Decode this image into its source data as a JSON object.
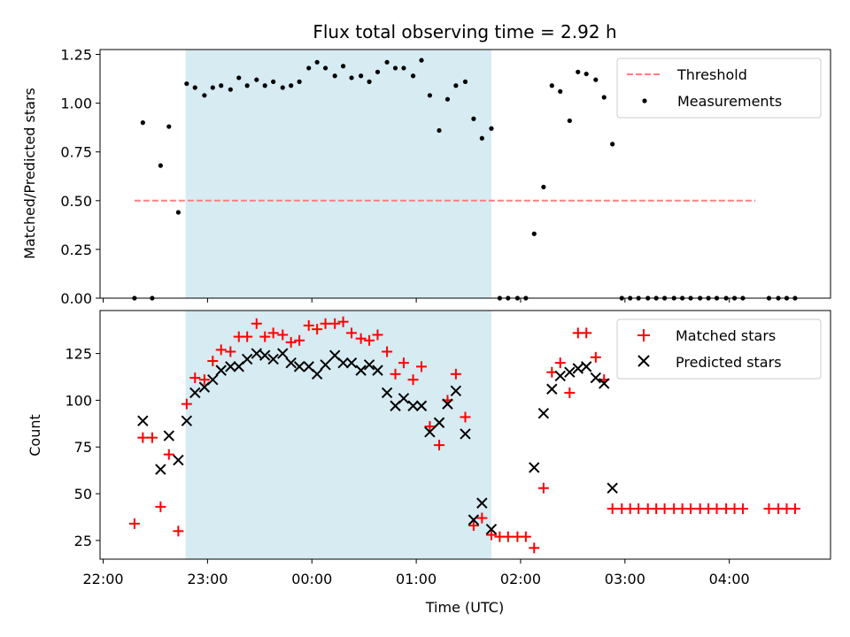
{
  "chart_data": [
    {
      "type": "scatter",
      "title": "Flux total observing time = 2.92 h",
      "xlabel": "",
      "ylabel": "Matched/Predicted stars",
      "xlim": [
        21.97,
        28.97
      ],
      "ylim": [
        0,
        1.275
      ],
      "x_ticks": [
        22,
        23,
        24,
        25,
        26,
        27,
        28
      ],
      "y_ticks": [
        0.0,
        0.25,
        0.5,
        0.75,
        1.0,
        1.25
      ],
      "y_tick_labels": [
        "0.00",
        "0.25",
        "0.50",
        "0.75",
        "1.00",
        "1.25"
      ],
      "shaded_region": [
        22.79,
        25.72
      ],
      "legend": [
        "Threshold",
        "Measurements"
      ],
      "threshold": {
        "name": "Threshold",
        "x": [
          22.3,
          28.25
        ],
        "y": 0.5,
        "color": "#ff7f7f"
      },
      "series": [
        {
          "name": "Measurements",
          "color": "#000000",
          "x": [
            22.3,
            22.38,
            22.47,
            22.55,
            22.63,
            22.72,
            22.8,
            22.88,
            22.97,
            23.05,
            23.13,
            23.22,
            23.3,
            23.38,
            23.47,
            23.55,
            23.63,
            23.72,
            23.8,
            23.88,
            23.97,
            24.05,
            24.13,
            24.22,
            24.3,
            24.38,
            24.47,
            24.55,
            24.63,
            24.72,
            24.8,
            24.88,
            24.97,
            25.05,
            25.13,
            25.22,
            25.3,
            25.38,
            25.47,
            25.55,
            25.63,
            25.72,
            25.8,
            25.88,
            25.97,
            26.05,
            26.13,
            26.22,
            26.3,
            26.38,
            26.47,
            26.55,
            26.63,
            26.72,
            26.8,
            26.88,
            26.97,
            27.05,
            27.13,
            27.22,
            27.3,
            27.38,
            27.47,
            27.55,
            27.63,
            27.72,
            27.8,
            27.88,
            27.97,
            28.05,
            28.13,
            28.38,
            28.47,
            28.55,
            28.63
          ],
          "y": [
            0.0,
            0.9,
            0.0,
            0.68,
            0.88,
            0.44,
            1.1,
            1.08,
            1.04,
            1.08,
            1.09,
            1.07,
            1.13,
            1.09,
            1.12,
            1.09,
            1.11,
            1.08,
            1.09,
            1.11,
            1.18,
            1.21,
            1.18,
            1.14,
            1.19,
            1.13,
            1.14,
            1.11,
            1.16,
            1.21,
            1.18,
            1.18,
            1.14,
            1.22,
            1.04,
            0.86,
            1.02,
            1.09,
            1.11,
            0.92,
            0.82,
            0.87,
            0.0,
            0.0,
            0.0,
            0.0,
            0.33,
            0.57,
            1.09,
            1.06,
            0.91,
            1.16,
            1.15,
            1.12,
            1.03,
            0.79,
            0.0,
            0.0,
            0.0,
            0.0,
            0.0,
            0.0,
            0.0,
            0.0,
            0.0,
            0.0,
            0.0,
            0.0,
            0.0,
            0.0,
            0.0,
            0.0,
            0.0,
            0.0,
            0.0
          ]
        }
      ]
    },
    {
      "type": "scatter",
      "title": "",
      "xlabel": "Time (UTC)",
      "ylabel": "Count",
      "xlim": [
        21.97,
        28.97
      ],
      "ylim": [
        15,
        148
      ],
      "x_ticks": [
        22,
        23,
        24,
        25,
        26,
        27,
        28
      ],
      "x_tick_labels": [
        "22:00",
        "23:00",
        "00:00",
        "01:00",
        "02:00",
        "03:00",
        "04:00"
      ],
      "y_ticks": [
        25,
        50,
        75,
        100,
        125
      ],
      "y_tick_labels": [
        "25",
        "50",
        "75",
        "100",
        "125"
      ],
      "shaded_region": [
        22.79,
        25.72
      ],
      "legend": [
        "Matched stars",
        "Predicted stars"
      ],
      "series": [
        {
          "name": "Matched stars",
          "color": "#ff0000",
          "marker": "+",
          "x": [
            22.3,
            22.38,
            22.47,
            22.55,
            22.63,
            22.72,
            22.8,
            22.88,
            22.97,
            23.05,
            23.13,
            23.22,
            23.3,
            23.38,
            23.47,
            23.55,
            23.63,
            23.72,
            23.8,
            23.88,
            23.97,
            24.05,
            24.13,
            24.22,
            24.3,
            24.38,
            24.47,
            24.55,
            24.63,
            24.72,
            24.8,
            24.88,
            24.97,
            25.05,
            25.13,
            25.22,
            25.3,
            25.38,
            25.47,
            25.55,
            25.63,
            25.72,
            25.8,
            25.88,
            25.97,
            26.05,
            26.13,
            26.22,
            26.3,
            26.38,
            26.47,
            26.55,
            26.63,
            26.72,
            26.8,
            26.88,
            26.97,
            27.05,
            27.13,
            27.22,
            27.3,
            27.38,
            27.47,
            27.55,
            27.63,
            27.72,
            27.8,
            27.88,
            27.97,
            28.05,
            28.13,
            28.38,
            28.47,
            28.55,
            28.63
          ],
          "y": [
            34,
            80,
            80,
            43,
            71,
            30,
            98,
            112,
            111,
            121,
            127,
            126,
            134,
            134,
            141,
            134,
            136,
            135,
            131,
            132,
            140,
            138,
            141,
            141,
            142,
            136,
            133,
            132,
            135,
            126,
            114,
            120,
            111,
            118,
            86,
            76,
            100,
            114,
            91,
            33,
            37,
            28,
            27,
            27,
            27,
            27,
            21,
            53,
            115,
            120,
            104,
            136,
            136,
            123,
            111,
            42,
            42,
            42,
            42,
            42,
            42,
            42,
            42,
            42,
            42,
            42,
            42,
            42,
            42,
            42,
            42,
            42,
            42,
            42,
            42
          ]
        },
        {
          "name": "Predicted stars",
          "color": "#000000",
          "marker": "x",
          "x": [
            22.38,
            22.55,
            22.63,
            22.72,
            22.8,
            22.88,
            22.97,
            23.05,
            23.13,
            23.22,
            23.3,
            23.38,
            23.47,
            23.55,
            23.63,
            23.72,
            23.8,
            23.88,
            23.97,
            24.05,
            24.13,
            24.22,
            24.3,
            24.38,
            24.47,
            24.55,
            24.63,
            24.72,
            24.8,
            24.88,
            24.97,
            25.05,
            25.13,
            25.22,
            25.3,
            25.38,
            25.47,
            25.55,
            25.63,
            25.72,
            26.13,
            26.22,
            26.3,
            26.38,
            26.47,
            26.55,
            26.63,
            26.72,
            26.8,
            26.88
          ],
          "y": [
            89,
            63,
            81,
            68,
            89,
            104,
            107,
            111,
            116,
            118,
            118,
            122,
            125,
            124,
            122,
            125,
            120,
            118,
            118,
            114,
            119,
            124,
            120,
            120,
            116,
            119,
            116,
            104,
            97,
            101,
            97,
            97,
            83,
            88,
            98,
            105,
            82,
            36,
            45,
            31,
            64,
            93,
            106,
            113,
            115,
            117,
            118,
            112,
            109,
            53
          ]
        }
      ]
    }
  ]
}
